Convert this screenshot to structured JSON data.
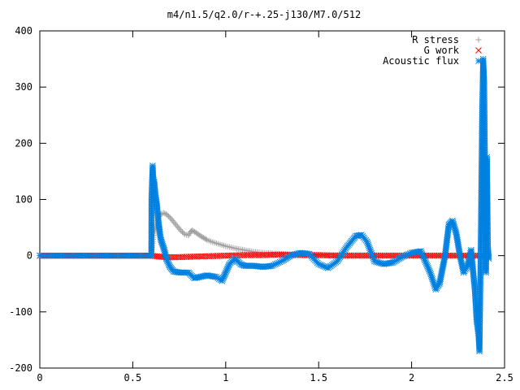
{
  "chart_data": {
    "type": "scatter",
    "title": "m4/n1.5/q2.0/r-+.25-j130/M7.0/512",
    "xlabel": "",
    "ylabel": "",
    "xlim": [
      0,
      2.5
    ],
    "ylim": [
      -200,
      400
    ],
    "x_ticks": [
      0,
      0.5,
      1,
      1.5,
      2,
      2.5
    ],
    "x_tick_labels": [
      "0",
      "0.5",
      "1",
      "1.5",
      "2",
      "2.5"
    ],
    "y_ticks": [
      -200,
      -100,
      0,
      100,
      200,
      300,
      400
    ],
    "y_tick_labels": [
      "-200",
      "-100",
      "0",
      "100",
      "200",
      "300",
      "400"
    ],
    "grid": false,
    "legend_position": "top-right",
    "series": [
      {
        "name": "R stress",
        "marker": "plus",
        "color": "#a0a0a0",
        "points": [
          [
            0.0,
            0
          ],
          [
            0.3,
            0
          ],
          [
            0.6,
            0
          ],
          [
            0.605,
            18
          ],
          [
            0.615,
            40
          ],
          [
            0.625,
            55
          ],
          [
            0.635,
            65
          ],
          [
            0.645,
            72
          ],
          [
            0.655,
            75
          ],
          [
            0.665,
            76
          ],
          [
            0.68,
            74
          ],
          [
            0.7,
            68
          ],
          [
            0.72,
            60
          ],
          [
            0.74,
            52
          ],
          [
            0.76,
            44
          ],
          [
            0.78,
            38
          ],
          [
            0.8,
            36
          ],
          [
            0.81,
            42
          ],
          [
            0.82,
            45
          ],
          [
            0.84,
            41
          ],
          [
            0.86,
            36
          ],
          [
            0.88,
            32
          ],
          [
            0.9,
            28
          ],
          [
            0.93,
            24
          ],
          [
            0.96,
            21
          ],
          [
            1.0,
            17
          ],
          [
            1.05,
            13
          ],
          [
            1.1,
            10
          ],
          [
            1.15,
            7
          ],
          [
            1.2,
            5
          ],
          [
            1.25,
            4
          ],
          [
            1.3,
            3
          ],
          [
            1.4,
            2
          ],
          [
            1.5,
            1
          ],
          [
            1.7,
            1
          ],
          [
            2.0,
            0.5
          ],
          [
            2.4,
            0
          ]
        ]
      },
      {
        "name": "G work",
        "marker": "cross",
        "color": "#ff0000",
        "points": [
          [
            0.0,
            0
          ],
          [
            0.3,
            0
          ],
          [
            0.6,
            0
          ],
          [
            0.65,
            -2
          ],
          [
            0.7,
            -3
          ],
          [
            0.8,
            -2
          ],
          [
            0.9,
            -1
          ],
          [
            1.0,
            0
          ],
          [
            1.1,
            1
          ],
          [
            1.2,
            1
          ],
          [
            1.3,
            2
          ],
          [
            1.4,
            1
          ],
          [
            1.5,
            1
          ],
          [
            1.6,
            0
          ],
          [
            1.7,
            0
          ],
          [
            1.8,
            0
          ],
          [
            1.9,
            0
          ],
          [
            2.0,
            0
          ],
          [
            2.1,
            0
          ],
          [
            2.2,
            0
          ],
          [
            2.3,
            0
          ],
          [
            2.4,
            0
          ]
        ]
      },
      {
        "name": "Acoustic flux",
        "marker": "star",
        "color": "#0080e0",
        "points": [
          [
            0.0,
            0
          ],
          [
            0.3,
            0
          ],
          [
            0.6,
            0
          ],
          [
            0.601,
            103
          ],
          [
            0.607,
            160
          ],
          [
            0.61,
            138
          ],
          [
            0.615,
            132
          ],
          [
            0.62,
            115
          ],
          [
            0.625,
            100
          ],
          [
            0.63,
            90
          ],
          [
            0.635,
            70
          ],
          [
            0.64,
            55
          ],
          [
            0.645,
            42
          ],
          [
            0.65,
            30
          ],
          [
            0.66,
            20
          ],
          [
            0.67,
            10
          ],
          [
            0.68,
            -5
          ],
          [
            0.7,
            -20
          ],
          [
            0.72,
            -28
          ],
          [
            0.75,
            -30
          ],
          [
            0.8,
            -30
          ],
          [
            0.83,
            -40
          ],
          [
            0.86,
            -38
          ],
          [
            0.9,
            -35
          ],
          [
            0.95,
            -38
          ],
          [
            0.98,
            -45
          ],
          [
            1.0,
            -30
          ],
          [
            1.02,
            -15
          ],
          [
            1.05,
            -5
          ],
          [
            1.08,
            -15
          ],
          [
            1.1,
            -18
          ],
          [
            1.15,
            -18
          ],
          [
            1.2,
            -20
          ],
          [
            1.25,
            -18
          ],
          [
            1.3,
            -10
          ],
          [
            1.35,
            0
          ],
          [
            1.4,
            5
          ],
          [
            1.45,
            3
          ],
          [
            1.5,
            -15
          ],
          [
            1.55,
            -22
          ],
          [
            1.6,
            -10
          ],
          [
            1.65,
            15
          ],
          [
            1.7,
            35
          ],
          [
            1.73,
            37
          ],
          [
            1.76,
            25
          ],
          [
            1.8,
            -10
          ],
          [
            1.85,
            -15
          ],
          [
            1.9,
            -12
          ],
          [
            1.95,
            -2
          ],
          [
            2.0,
            5
          ],
          [
            2.05,
            8
          ],
          [
            2.1,
            -30
          ],
          [
            2.13,
            -60
          ],
          [
            2.15,
            -50
          ],
          [
            2.18,
            0
          ],
          [
            2.2,
            55
          ],
          [
            2.22,
            62
          ],
          [
            2.24,
            40
          ],
          [
            2.26,
            0
          ],
          [
            2.28,
            -30
          ],
          [
            2.3,
            -20
          ],
          [
            2.32,
            10
          ],
          [
            2.34,
            -60
          ],
          [
            2.35,
            -115
          ],
          [
            2.36,
            -140
          ],
          [
            2.365,
            -170
          ],
          [
            2.37,
            -42
          ],
          [
            2.375,
            105
          ],
          [
            2.38,
            260
          ],
          [
            2.385,
            350
          ],
          [
            2.39,
            310
          ],
          [
            2.395,
            145
          ],
          [
            2.4,
            -30
          ],
          [
            2.405,
            175
          ],
          [
            2.41,
            15
          ],
          [
            2.415,
            -5
          ]
        ]
      }
    ]
  }
}
